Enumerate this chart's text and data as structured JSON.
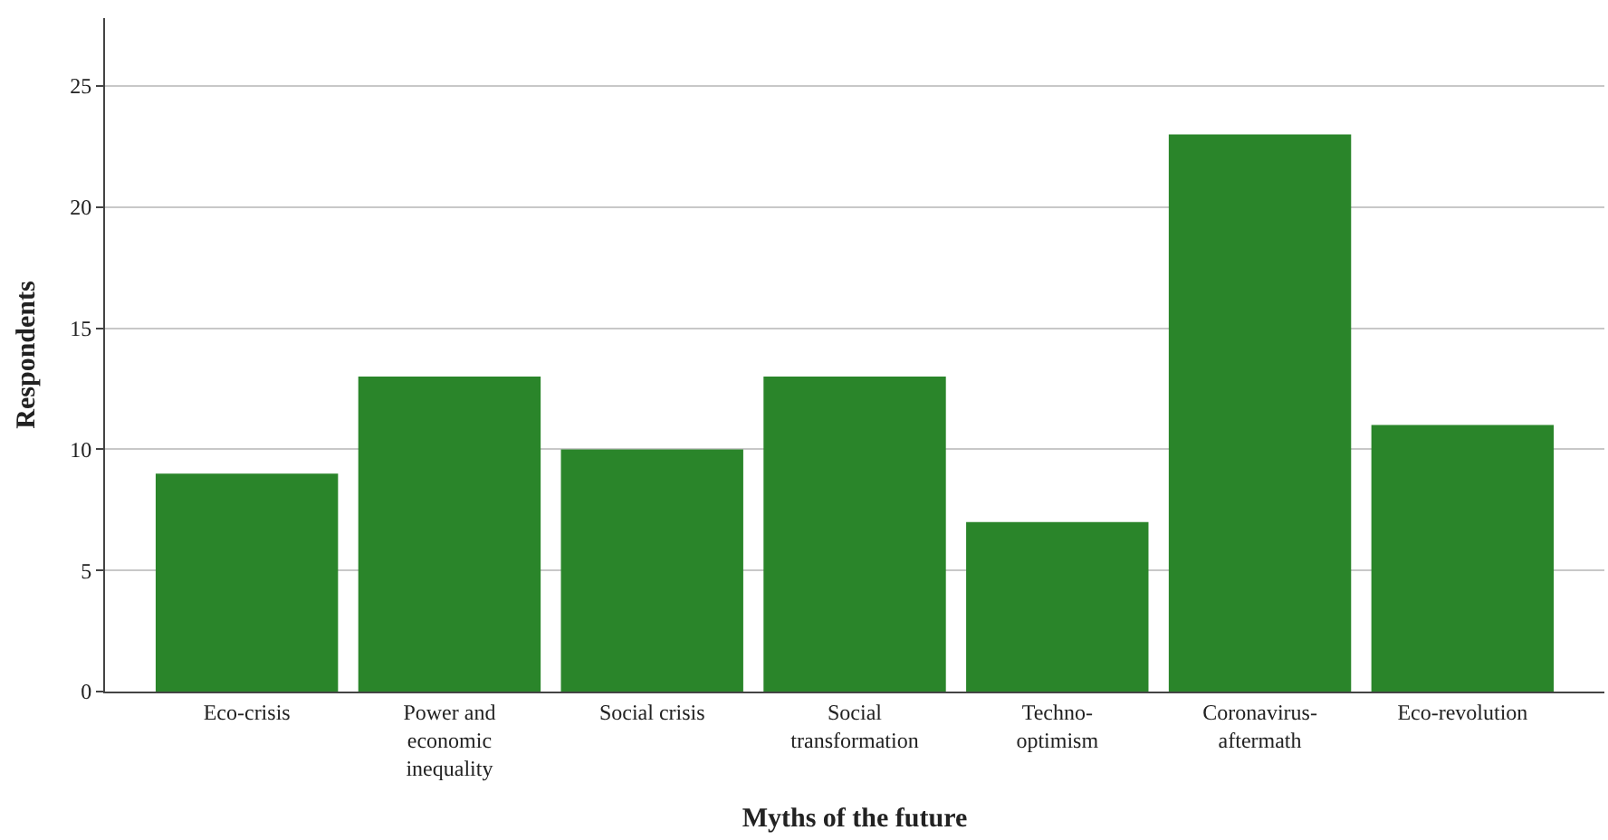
{
  "chart_data": {
    "type": "bar",
    "xlabel": "Myths of the future",
    "ylabel": "Respondents",
    "categories": [
      "Eco-crisis",
      "Power and economic inequality",
      "Social crisis",
      "Social transformation",
      "Techno-optimism",
      "Coronavirus-aftermath",
      "Eco-revolution"
    ],
    "values": [
      9,
      13,
      10,
      13,
      7,
      23,
      11
    ],
    "color": "#2a852a",
    "ylim": [
      0,
      27.8
    ],
    "yticks": [
      0,
      5,
      10,
      15,
      20,
      25
    ],
    "grid": "y",
    "legend": false
  }
}
